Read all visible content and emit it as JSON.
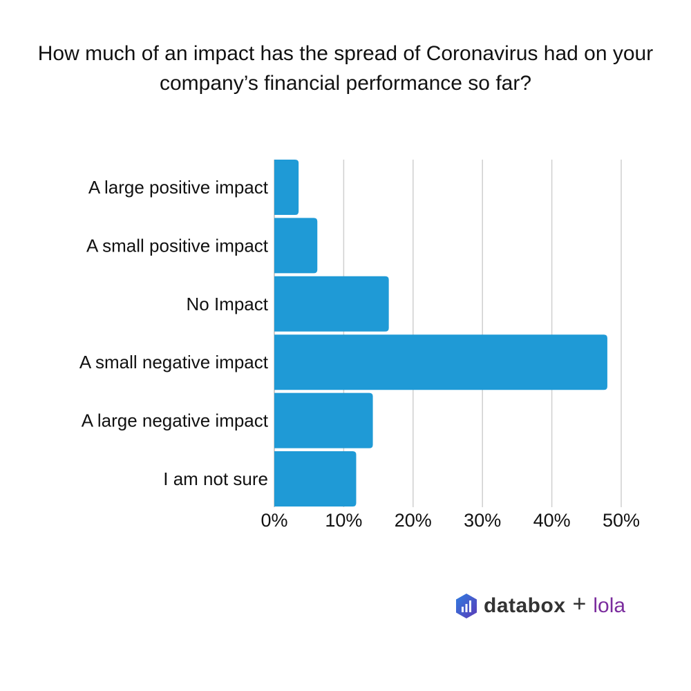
{
  "chart_data": {
    "type": "bar",
    "orientation": "horizontal",
    "title": "How much of an impact has the spread of Coronavirus had on your company’s financial performance so far?",
    "categories": [
      "A large positive impact",
      "A small positive impact",
      "No Impact",
      "A small negative impact",
      "A large negative impact",
      "I am not sure"
    ],
    "values": [
      3.5,
      6.2,
      16.5,
      48.0,
      14.2,
      11.8
    ],
    "unit": "%",
    "xlim": [
      0,
      50
    ],
    "xticks": [
      "0%",
      "10%",
      "20%",
      "30%",
      "40%",
      "50%"
    ],
    "grid": "vertical",
    "bar_color": "#1f9ad6",
    "grid_color": "#cfcfcf"
  },
  "logo": {
    "brand1": "databox",
    "plus": "+",
    "brand2": "lola"
  }
}
